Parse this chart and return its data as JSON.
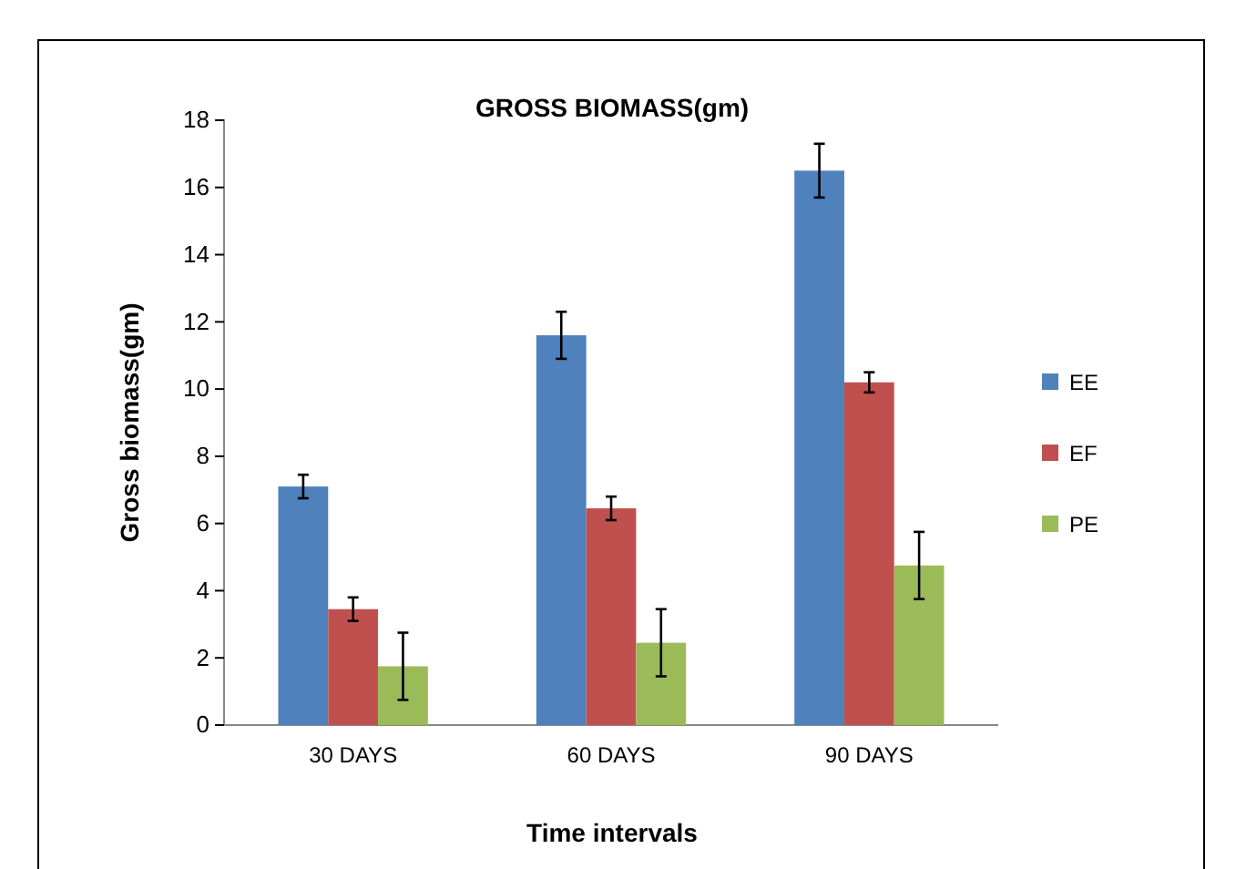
{
  "chart_data": {
    "type": "bar",
    "title": "GROSS BIOMASS(gm)",
    "xlabel": "Time intervals",
    "ylabel": "Gross biomass(gm)",
    "categories": [
      "30 DAYS",
      "60 DAYS",
      "90 DAYS"
    ],
    "series": [
      {
        "name": "EE",
        "color": "#4f81bd",
        "values": [
          7.1,
          11.6,
          16.5
        ],
        "errors": [
          0.35,
          0.7,
          0.8
        ]
      },
      {
        "name": "EF",
        "color": "#c0504d",
        "values": [
          3.45,
          6.45,
          10.2
        ],
        "errors": [
          0.35,
          0.35,
          0.3
        ]
      },
      {
        "name": "PE",
        "color": "#9bbb59",
        "values": [
          1.75,
          2.45,
          4.75
        ],
        "errors": [
          1.0,
          1.0,
          1.0
        ]
      }
    ],
    "ylim": [
      0,
      18
    ],
    "yticks": [
      0,
      2,
      4,
      6,
      8,
      10,
      12,
      14,
      16,
      18
    ],
    "legend": "right"
  }
}
